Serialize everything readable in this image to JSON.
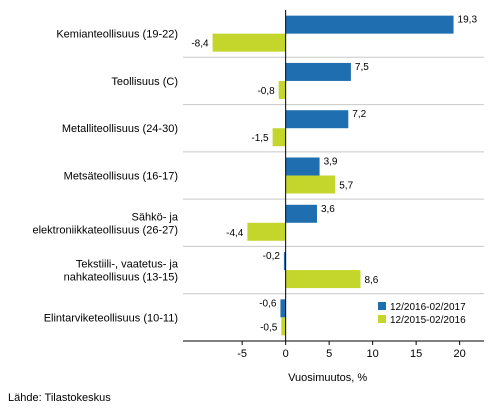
{
  "chart_data": {
    "type": "bar",
    "orientation": "horizontal",
    "categories": [
      [
        "Kemianteollisuus (19-22)"
      ],
      [
        "Teollisuus (C)"
      ],
      [
        "Metalliteollisuus (24-30)"
      ],
      [
        "Metsäteollisuus (16-17)"
      ],
      [
        "Sähkö- ja",
        "elektroniikkateollisuus (26-27)"
      ],
      [
        "Tekstiili-, vaatetus- ja",
        "nahkateollisuus (13-15)"
      ],
      [
        "Elintarviketeollisuus (10-11)"
      ]
    ],
    "series": [
      {
        "name": "12/2016-02/2017",
        "color": "#1f6fb0",
        "values": [
          19.3,
          7.5,
          7.2,
          3.9,
          3.6,
          -0.2,
          -0.6
        ],
        "labels": [
          "19,3",
          "7,5",
          "7,2",
          "3,9",
          "3,6",
          "-0,2",
          "-0,6"
        ]
      },
      {
        "name": "12/2015-02/2016",
        "color": "#c4d52c",
        "values": [
          -8.4,
          -0.8,
          -1.5,
          5.7,
          -4.4,
          8.6,
          -0.5
        ],
        "labels": [
          "-8,4",
          "-0,8",
          "-1,5",
          "5,7",
          "-4,4",
          "8,6",
          "-0,5"
        ]
      }
    ],
    "xlim": [
      -11.8,
      22.8
    ],
    "xticks": [
      -5,
      0,
      5,
      10,
      15,
      20
    ],
    "xtick_labels": [
      "-5",
      "0",
      "5",
      "10",
      "15",
      "20"
    ],
    "xlabel": "Vuosimuutos, %",
    "legend_position": "bottom-right",
    "grid": "horizontal separators"
  },
  "source": "Lähde: Tilastokeskus"
}
